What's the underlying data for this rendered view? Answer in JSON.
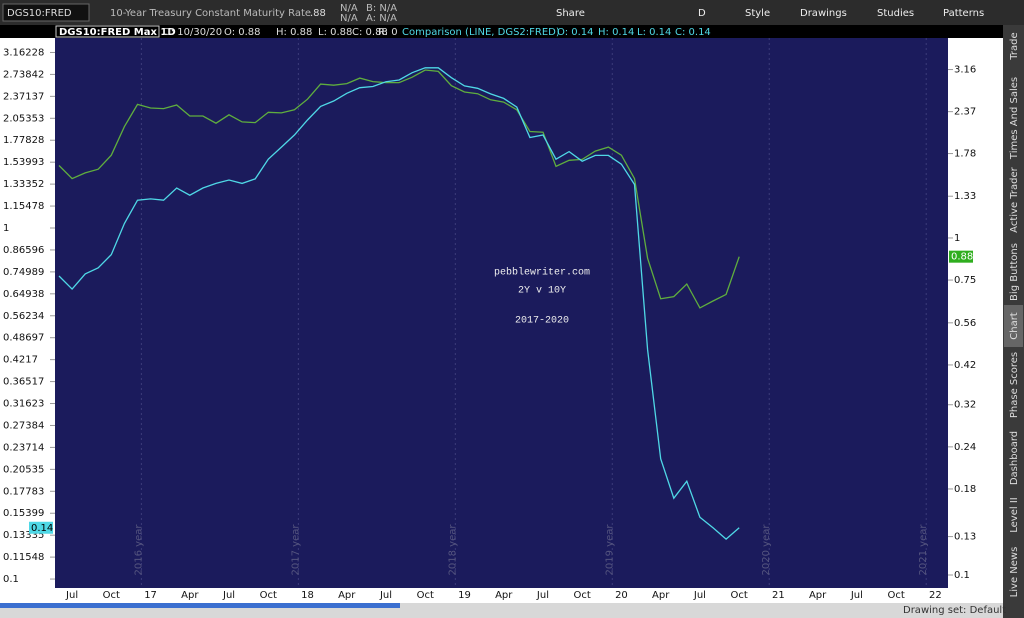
{
  "toolbar": {
    "symbol": "DGS10:FRED",
    "description": "10-Year Treasury Constant Maturity Rate",
    "last": ".88",
    "change": "N/A",
    "change_pct": "N/A",
    "bid": "B: N/A",
    "ask": "A: N/A",
    "buttons": [
      "Share",
      "D",
      "Style",
      "Drawings",
      "Studies",
      "Patterns"
    ]
  },
  "info_bar": {
    "title": "DGS10:FRED Max 1D",
    "fields": [
      "D: 10/30/20",
      "O: 0.88",
      "H: 0.88",
      "L: 0.88",
      "C: 0.88",
      "R: 0"
    ],
    "comparison": "Comparison (LINE, DGS2:FRED)",
    "comparison_fields": [
      "O: 0.14",
      "H: 0.14",
      "L: 0.14",
      "C: 0.14"
    ]
  },
  "chart_data": {
    "type": "line",
    "log_scale": true,
    "grid": false,
    "annotations": [
      "pebblewriter.com",
      "2Y v 10Y",
      "2017-2020"
    ],
    "year_labels": [
      "2016 year",
      "2017 year",
      "2018 year",
      "2019 year",
      "2020 year",
      "2021 year"
    ],
    "categories": [
      null,
      "Jul",
      null,
      null,
      "Oct",
      null,
      null,
      "17",
      null,
      null,
      "Apr",
      null,
      null,
      "Jul",
      null,
      null,
      "Oct",
      null,
      null,
      "18",
      null,
      null,
      "Apr",
      null,
      null,
      "Jul",
      null,
      null,
      "Oct",
      null,
      null,
      "19",
      null,
      null,
      "Apr",
      null,
      null,
      "Jul",
      null,
      null,
      "Oct",
      null,
      null,
      "20",
      null,
      null,
      "Apr",
      null,
      null,
      "Jul",
      null,
      null,
      "Oct",
      null,
      null,
      "21",
      null,
      null,
      "Apr",
      null,
      null,
      "Jul",
      null,
      null,
      "Oct",
      null,
      null,
      "22"
    ],
    "series": [
      {
        "color": "#5fae3e",
        "axis": "y2",
        "values": [
          1.64,
          1.5,
          1.56,
          1.6,
          1.76,
          2.14,
          2.49,
          2.43,
          2.42,
          2.48,
          2.3,
          2.3,
          2.19,
          2.32,
          2.21,
          2.2,
          2.36,
          2.35,
          2.4,
          2.58,
          2.86,
          2.84,
          2.87,
          2.98,
          2.91,
          2.89,
          2.89,
          3.0,
          3.15,
          3.12,
          2.83,
          2.71,
          2.68,
          2.57,
          2.53,
          2.4,
          2.07,
          2.06,
          1.63,
          1.7,
          1.71,
          1.81,
          1.86,
          1.76,
          1.5,
          0.87,
          0.66,
          0.67,
          0.73,
          0.62,
          0.65,
          0.68,
          0.88,
          null,
          null,
          null,
          null,
          null,
          null,
          null,
          null,
          null,
          null,
          null,
          null,
          null,
          null,
          null
        ]
      },
      {
        "color": "#4fd8e6",
        "values": [
          0.73,
          0.67,
          0.74,
          0.77,
          0.84,
          1.03,
          1.2,
          1.21,
          1.2,
          1.3,
          1.24,
          1.3,
          1.34,
          1.37,
          1.34,
          1.38,
          1.57,
          1.7,
          1.84,
          2.03,
          2.22,
          2.3,
          2.42,
          2.51,
          2.53,
          2.61,
          2.64,
          2.77,
          2.86,
          2.86,
          2.68,
          2.54,
          2.5,
          2.41,
          2.34,
          2.21,
          1.81,
          1.84,
          1.57,
          1.65,
          1.55,
          1.61,
          1.61,
          1.52,
          1.33,
          0.45,
          0.22,
          0.17,
          0.19,
          0.15,
          0.14,
          0.13,
          0.14,
          null,
          null,
          null,
          null,
          null,
          null,
          null,
          null,
          null,
          null,
          null,
          null,
          null,
          null,
          null
        ]
      }
    ],
    "ylim": [
      0.0943,
      3.477
    ],
    "yticks": [
      3.16228,
      2.73842,
      2.37137,
      2.05353,
      1.77828,
      1.53993,
      1.33352,
      1.15478,
      1,
      0.86596,
      0.74989,
      0.64938,
      0.56234,
      0.48697,
      0.4217,
      0.36517,
      0.31623,
      0.27384,
      0.23714,
      0.20535,
      0.17783,
      0.15399,
      0.13335,
      0.11548,
      0.1
    ],
    "y2lim": [
      0.0915,
      3.92
    ],
    "y2ticks": [
      3.16,
      2.37,
      1.78,
      1.33,
      1,
      0.75,
      0.56,
      0.42,
      0.32,
      0.24,
      0.18,
      0.13,
      0.1
    ]
  },
  "side_tabs": [
    "Trade",
    "Times And Sales",
    "Active Trader",
    "Big Buttons",
    "Chart",
    "Phase Scores",
    "Dashboard",
    "Level II",
    "Live News"
  ],
  "footer": {
    "drawing_set": "Drawing set: Default"
  }
}
